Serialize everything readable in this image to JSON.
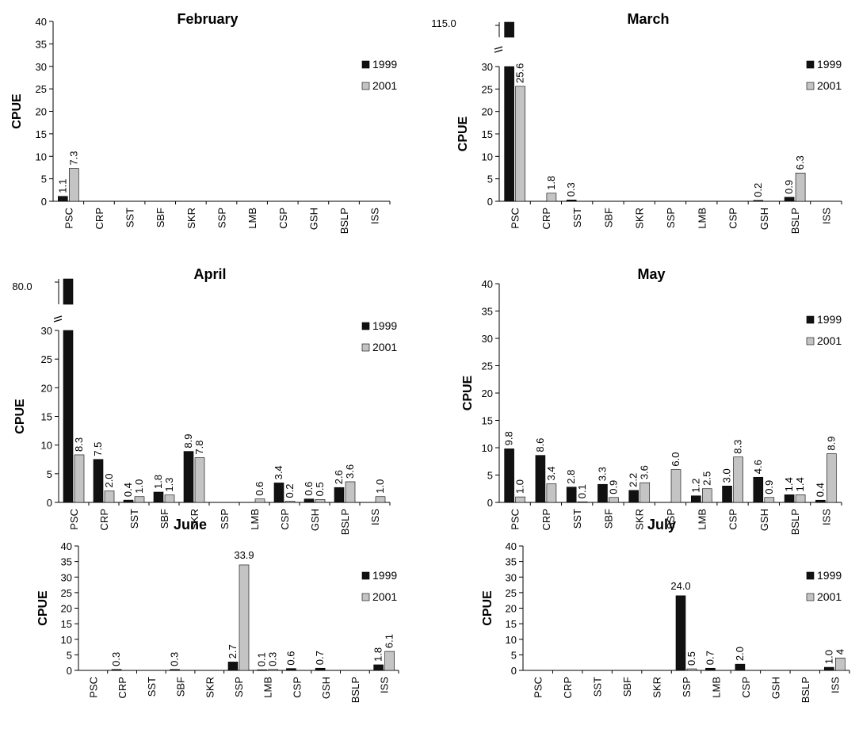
{
  "colors": {
    "s1999": "#111111",
    "s2001": "#c4c4c4",
    "axis": "#000000"
  },
  "chart_data": [
    {
      "type": "bar",
      "title": "February",
      "ylabel": "CPUE",
      "xlabel": "",
      "ylim": [
        0,
        40
      ],
      "yticks": [
        0,
        5,
        10,
        15,
        20,
        25,
        30,
        35,
        40
      ],
      "categories": [
        "PSC",
        "CRP",
        "SST",
        "SBF",
        "SKR",
        "SSP",
        "LMB",
        "CSP",
        "GSH",
        "BSLP",
        "ISS"
      ],
      "series": [
        {
          "name": "1999",
          "values": [
            1.1,
            null,
            null,
            null,
            null,
            null,
            null,
            null,
            null,
            null,
            null
          ],
          "labels": [
            "1.1",
            "",
            "",
            "",
            "",
            "",
            "",
            "",
            "",
            "",
            ""
          ]
        },
        {
          "name": "2001",
          "values": [
            7.3,
            null,
            null,
            null,
            null,
            null,
            null,
            null,
            null,
            null,
            null
          ],
          "labels": [
            "7.3",
            "",
            "",
            "",
            "",
            "",
            "",
            "",
            "",
            "",
            ""
          ]
        }
      ],
      "legend": "right"
    },
    {
      "type": "bar",
      "title": "March",
      "ylabel": "CPUE",
      "xlabel": "",
      "ylim": [
        0,
        30
      ],
      "yticks": [
        0,
        5,
        10,
        15,
        20,
        25,
        30
      ],
      "axis_break": {
        "label": "115.0"
      },
      "categories": [
        "PSC",
        "CRP",
        "SST",
        "SBF",
        "SKR",
        "SSP",
        "LMB",
        "CSP",
        "GSH",
        "BSLP",
        "ISS"
      ],
      "series": [
        {
          "name": "1999",
          "values": [
            115.0,
            null,
            0.3,
            null,
            null,
            null,
            null,
            null,
            0.2,
            0.9,
            null
          ],
          "labels": [
            "",
            "",
            "0.3",
            "",
            "",
            "",
            "",
            "",
            "0.2",
            "0.9",
            ""
          ]
        },
        {
          "name": "2001",
          "values": [
            25.6,
            1.8,
            null,
            null,
            null,
            null,
            null,
            null,
            null,
            6.3,
            null
          ],
          "labels": [
            "25.6",
            "1.8",
            "",
            "",
            "",
            "",
            "",
            "",
            "",
            "6.3",
            ""
          ]
        }
      ],
      "legend": "right"
    },
    {
      "type": "bar",
      "title": "April",
      "ylabel": "CPUE",
      "xlabel": "",
      "ylim": [
        0,
        30
      ],
      "yticks": [
        0,
        5,
        10,
        15,
        20,
        25,
        30
      ],
      "axis_break": {
        "label": "80.0"
      },
      "categories": [
        "PSC",
        "CRP",
        "SST",
        "SBF",
        "SKR",
        "SSP",
        "LMB",
        "CSP",
        "GSH",
        "BSLP",
        "ISS"
      ],
      "series": [
        {
          "name": "1999",
          "values": [
            80.0,
            7.5,
            0.4,
            1.8,
            8.9,
            null,
            null,
            3.4,
            0.6,
            2.6,
            null
          ],
          "labels": [
            "",
            "7.5",
            "0.4",
            "1.8",
            "8.9",
            "",
            "",
            "3.4",
            "0.6",
            "2.6",
            ""
          ]
        },
        {
          "name": "2001",
          "values": [
            8.3,
            2.0,
            1.0,
            1.3,
            7.8,
            null,
            0.6,
            0.2,
            0.5,
            3.6,
            1.0
          ],
          "labels": [
            "8.3",
            "2.0",
            "1.0",
            "1.3",
            "7.8",
            "",
            "0.6",
            "0.2",
            "0.5",
            "3.6",
            "1.0"
          ]
        }
      ],
      "legend": "right"
    },
    {
      "type": "bar",
      "title": "May",
      "ylabel": "CPUE",
      "xlabel": "",
      "ylim": [
        0,
        40
      ],
      "yticks": [
        0,
        5,
        10,
        15,
        20,
        25,
        30,
        35,
        40
      ],
      "categories": [
        "PSC",
        "CRP",
        "SST",
        "SBF",
        "SKR",
        "SSP",
        "LMB",
        "CSP",
        "GSH",
        "BSLP",
        "ISS"
      ],
      "series": [
        {
          "name": "1999",
          "values": [
            9.8,
            8.6,
            2.8,
            3.3,
            2.2,
            null,
            1.2,
            3.0,
            4.6,
            1.4,
            0.4
          ],
          "labels": [
            "9.8",
            "8.6",
            "2.8",
            "3.3",
            "2.2",
            "",
            "1.2",
            "3.0",
            "4.6",
            "1.4",
            "0.4"
          ]
        },
        {
          "name": "2001",
          "values": [
            1.0,
            3.4,
            0.1,
            0.9,
            3.6,
            6.0,
            2.5,
            8.3,
            0.9,
            1.4,
            8.9
          ],
          "labels": [
            "1.0",
            "3.4",
            "0.1",
            "0.9",
            "3.6",
            "6.0",
            "2.5",
            "8.3",
            "0.9",
            "1.4",
            "8.9"
          ]
        }
      ],
      "legend": "right"
    },
    {
      "type": "bar",
      "title": "June",
      "ylabel": "CPUE",
      "xlabel": "",
      "ylim": [
        0,
        40
      ],
      "yticks": [
        0,
        5,
        10,
        15,
        20,
        25,
        30,
        35,
        40
      ],
      "categories": [
        "PSC",
        "CRP",
        "SST",
        "SBF",
        "SKR",
        "SSP",
        "LMB",
        "CSP",
        "GSH",
        "BSLP",
        "ISS"
      ],
      "series": [
        {
          "name": "1999",
          "values": [
            null,
            0.3,
            null,
            0.3,
            null,
            2.7,
            0.1,
            0.6,
            0.7,
            null,
            1.8
          ],
          "labels": [
            "",
            "0.3",
            "",
            "0.3",
            "",
            "2.7",
            "0.1",
            "0.6",
            "0.7",
            "",
            "1.8"
          ]
        },
        {
          "name": "2001",
          "values": [
            null,
            null,
            null,
            null,
            null,
            33.9,
            0.3,
            null,
            null,
            null,
            6.1
          ],
          "labels": [
            "",
            "",
            "",
            "",
            "",
            "33.9",
            "0.3",
            "",
            "",
            "",
            "6.1"
          ]
        }
      ],
      "legend": "right"
    },
    {
      "type": "bar",
      "title": "July",
      "ylabel": "CPUE",
      "xlabel": "",
      "ylim": [
        0,
        40
      ],
      "yticks": [
        0,
        5,
        10,
        15,
        20,
        25,
        30,
        35,
        40
      ],
      "categories": [
        "PSC",
        "CRP",
        "SST",
        "SBF",
        "SKR",
        "SSP",
        "LMB",
        "CSP",
        "GSH",
        "BSLP",
        "ISS"
      ],
      "series": [
        {
          "name": "1999",
          "values": [
            null,
            null,
            null,
            null,
            null,
            24.0,
            0.7,
            2.0,
            null,
            null,
            1.0
          ],
          "labels": [
            "",
            "",
            "",
            "",
            "",
            "24.0",
            "0.7",
            "2.0",
            "",
            "",
            "1.0"
          ]
        },
        {
          "name": "2001",
          "values": [
            null,
            null,
            null,
            null,
            null,
            0.5,
            null,
            null,
            null,
            null,
            4.0
          ],
          "labels": [
            "",
            "",
            "",
            "",
            "",
            "0.5",
            "",
            "",
            "",
            "",
            "4"
          ]
        }
      ],
      "legend": "right"
    }
  ]
}
